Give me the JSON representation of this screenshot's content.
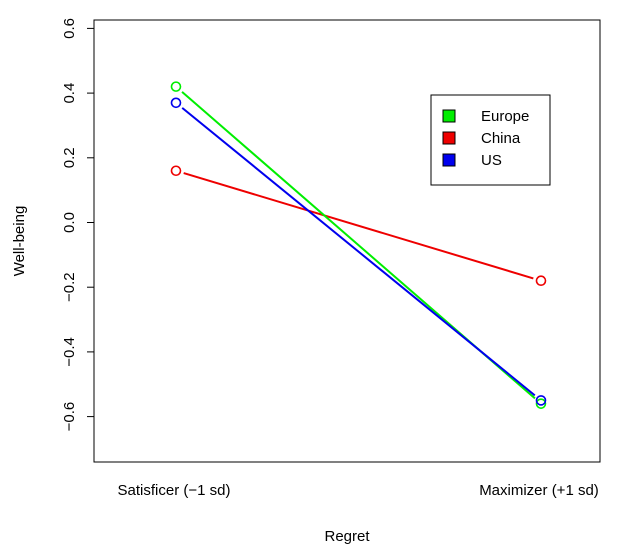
{
  "chart_data": {
    "type": "line",
    "title": "",
    "xlabel": "Regret",
    "ylabel": "Well-being",
    "categories": [
      "Satisficer (−1 sd)",
      "Maximizer (+1 sd)"
    ],
    "ylim": [
      -0.7,
      0.6
    ],
    "yticks": [
      -0.6,
      -0.4,
      -0.2,
      0.0,
      0.2,
      0.4,
      0.6
    ],
    "ytick_labels": [
      "−0.6",
      "−0.4",
      "−0.2",
      "0.0",
      "0.2",
      "0.4",
      "0.6"
    ],
    "grid": false,
    "legend_position": "upper-right",
    "series": [
      {
        "name": "Europe",
        "color": "#00ee00",
        "values": [
          0.42,
          -0.56
        ]
      },
      {
        "name": "China",
        "color": "#ee0000",
        "values": [
          0.16,
          -0.18
        ]
      },
      {
        "name": "US",
        "color": "#0000ee",
        "values": [
          0.37,
          -0.55
        ]
      }
    ]
  }
}
